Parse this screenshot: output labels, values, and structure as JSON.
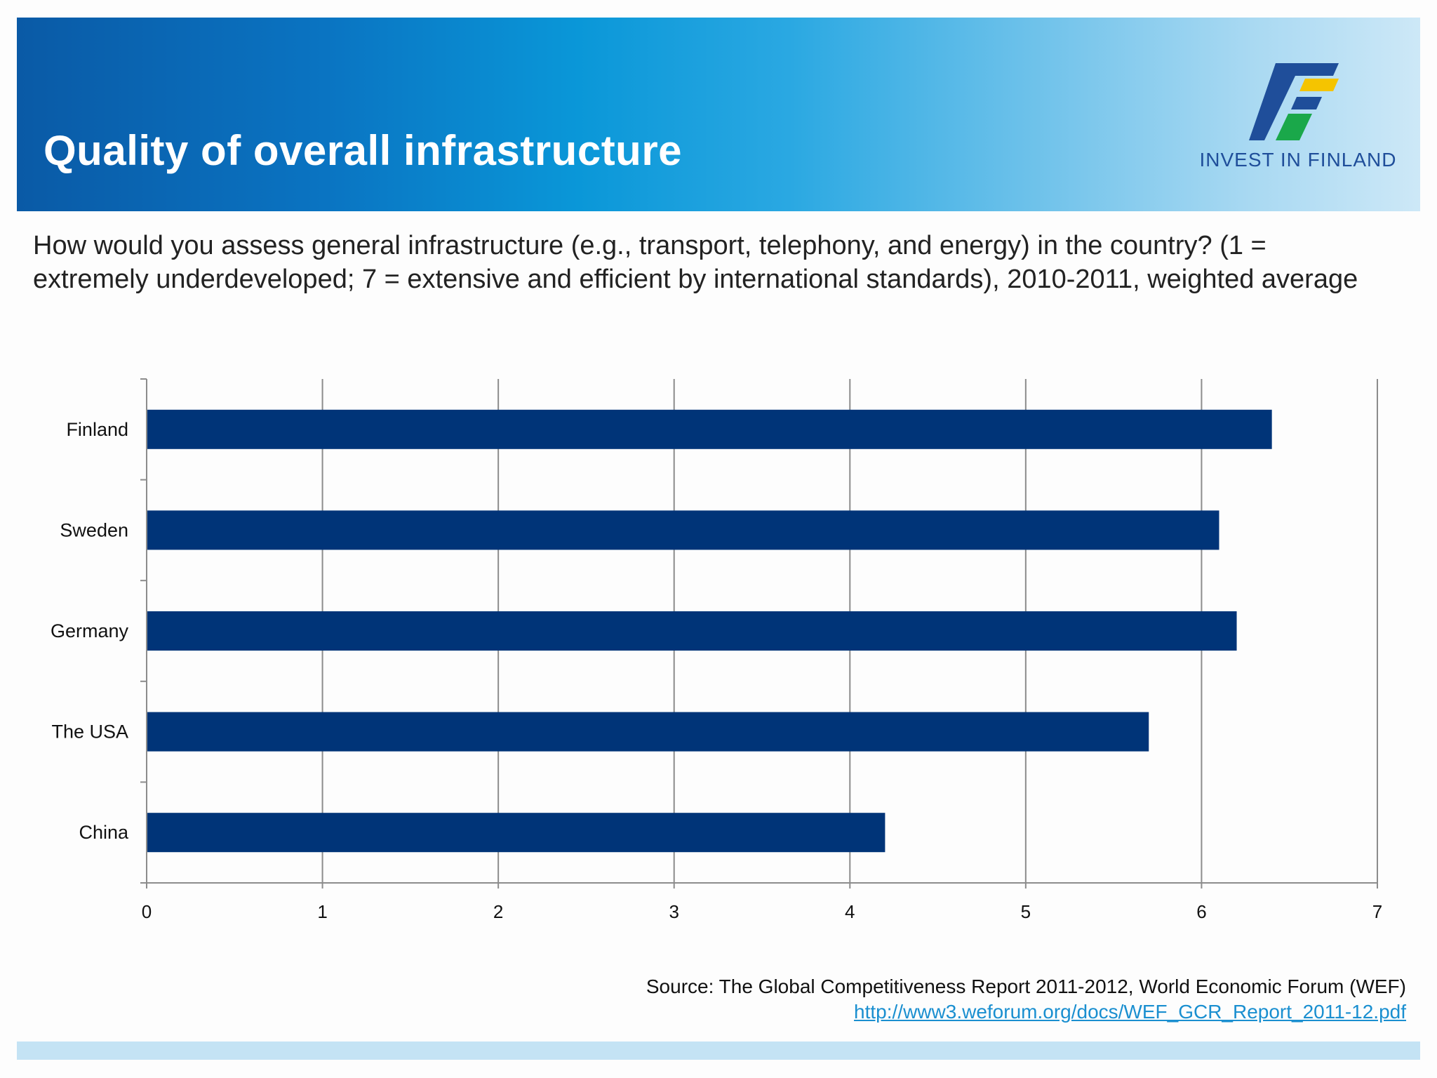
{
  "header": {
    "title": "Quality of overall infrastructure",
    "logo_text": "INVEST IN FINLAND"
  },
  "question": "How would you assess general infrastructure (e.g., transport, telephony, and energy) in the country? (1 = extremely underdeveloped; 7 = extensive and efficient by international standards), 2010-2011, weighted average",
  "chart_data": {
    "type": "bar",
    "orientation": "horizontal",
    "categories": [
      "Finland",
      "Sweden",
      "Germany",
      "The USA",
      "China"
    ],
    "values": [
      6.4,
      6.1,
      6.2,
      5.7,
      4.2
    ],
    "xlim": [
      0,
      7
    ],
    "xticks": [
      "0",
      "1",
      "2",
      "3",
      "4",
      "5",
      "6",
      "7"
    ],
    "grid": true,
    "bar_color": "#003478",
    "title": "",
    "xlabel": "",
    "ylabel": ""
  },
  "source": {
    "text": "Source: The Global Competitiveness Report 2011-2012, World Economic Forum (WEF)",
    "link": "http://www3.weforum.org/docs/WEF_GCR_Report_2011-12.pdf"
  },
  "colors": {
    "banner_dark": "#0a5aa6",
    "banner_light": "#cde8f7",
    "logo_blue": "#1f4e9a",
    "logo_yellow": "#f5c400",
    "logo_green": "#1aa84a"
  }
}
